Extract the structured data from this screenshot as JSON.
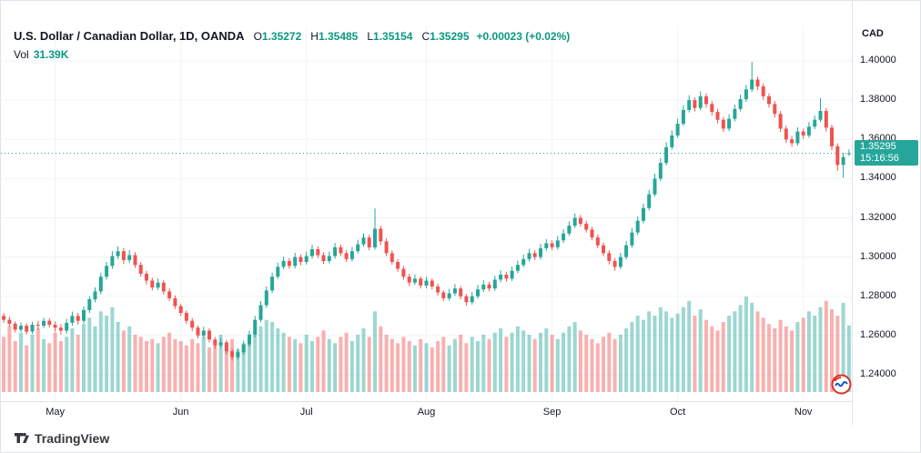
{
  "header": {
    "symbol_title": "U.S. Dollar / Canadian Dollar, 1D, OANDA",
    "open_label": "O",
    "open": "1.35272",
    "high_label": "H",
    "high": "1.35485",
    "low_label": "L",
    "low": "1.35154",
    "close_label": "C",
    "close": "1.35295",
    "change": "+0.00023 (+0.02%)",
    "volume_label": "Vol",
    "volume_value": "31.39K"
  },
  "price_axis": {
    "currency": "CAD",
    "labels": [
      "1.40000",
      "1.38000",
      "1.36000",
      "1.34000",
      "1.32000",
      "1.30000",
      "1.28000",
      "1.26000",
      "1.24000"
    ],
    "last_price": "1.35295",
    "last_time": "15:16:56"
  },
  "footer": {
    "brand": "TradingView"
  },
  "colors": {
    "up": "#26a69a",
    "down": "#ef5350",
    "text_green": "#089981",
    "volume_up": "rgba(38,166,154,0.45)",
    "volume_down": "rgba(239,83,80,0.45)",
    "badge": "#26a69a",
    "grid": "#f0f3fa"
  },
  "chart_data": {
    "type": "candlestick",
    "title": "U.S. Dollar / Canadian Dollar, 1D, OANDA",
    "price_axis_min": 1.24,
    "price_axis_max": 1.4,
    "price_step": 0.02,
    "current_price": 1.35295,
    "ohlc_last": {
      "open": 1.35272,
      "high": 1.35485,
      "low": 1.35154,
      "close": 1.35295,
      "change": 0.00023,
      "change_pct": 0.02
    },
    "volume_last_k": 31.39,
    "month_ticks": [
      {
        "label": "May",
        "index": 9
      },
      {
        "label": "Jun",
        "index": 31
      },
      {
        "label": "Jul",
        "index": 53
      },
      {
        "label": "Aug",
        "index": 74
      },
      {
        "label": "Sep",
        "index": 96
      },
      {
        "label": "Oct",
        "index": 118
      },
      {
        "label": "Nov",
        "index": 140
      }
    ],
    "candles": [
      [
        1.27,
        1.2715,
        1.2665,
        1.268
      ],
      [
        1.268,
        1.2695,
        1.2645,
        1.266
      ],
      [
        1.266,
        1.2672,
        1.2615,
        1.263
      ],
      [
        1.263,
        1.2668,
        1.2618,
        1.265
      ],
      [
        1.265,
        1.2662,
        1.2605,
        1.262
      ],
      [
        1.262,
        1.267,
        1.2608,
        1.2655
      ],
      [
        1.2655,
        1.2675,
        1.2632,
        1.265
      ],
      [
        1.265,
        1.269,
        1.2638,
        1.2675
      ],
      [
        1.2675,
        1.2688,
        1.264,
        1.2655
      ],
      [
        1.2655,
        1.2672,
        1.262,
        1.264
      ],
      [
        1.264,
        1.2658,
        1.2605,
        1.2625
      ],
      [
        1.2625,
        1.2685,
        1.261,
        1.2665
      ],
      [
        1.2665,
        1.2722,
        1.265,
        1.27
      ],
      [
        1.27,
        1.2715,
        1.2655,
        1.2675
      ],
      [
        1.2675,
        1.2748,
        1.266,
        1.273
      ],
      [
        1.273,
        1.28,
        1.2715,
        1.2785
      ],
      [
        1.2785,
        1.2845,
        1.277,
        1.2825
      ],
      [
        1.2825,
        1.292,
        1.281,
        1.29
      ],
      [
        1.29,
        1.2975,
        1.2885,
        1.2955
      ],
      [
        1.2955,
        1.303,
        1.294,
        1.3005
      ],
      [
        1.3005,
        1.3055,
        1.299,
        1.303
      ],
      [
        1.303,
        1.3045,
        1.2965,
        1.2985
      ],
      [
        1.2985,
        1.3035,
        1.297,
        1.301
      ],
      [
        1.301,
        1.3025,
        1.2945,
        1.296
      ],
      [
        1.296,
        1.2975,
        1.29,
        1.2915
      ],
      [
        1.2915,
        1.293,
        1.286,
        1.288
      ],
      [
        1.288,
        1.2895,
        1.283,
        1.2845
      ],
      [
        1.2845,
        1.289,
        1.2832,
        1.287
      ],
      [
        1.287,
        1.2882,
        1.2808,
        1.2825
      ],
      [
        1.2825,
        1.284,
        1.2775,
        1.279
      ],
      [
        1.279,
        1.2805,
        1.2735,
        1.275
      ],
      [
        1.275,
        1.2762,
        1.27,
        1.2715
      ],
      [
        1.2715,
        1.2728,
        1.266,
        1.2675
      ],
      [
        1.2675,
        1.269,
        1.2622,
        1.264
      ],
      [
        1.264,
        1.2652,
        1.2585,
        1.26
      ],
      [
        1.26,
        1.2645,
        1.2588,
        1.2625
      ],
      [
        1.2625,
        1.2638,
        1.2565,
        1.258
      ],
      [
        1.258,
        1.2592,
        1.2532,
        1.255
      ],
      [
        1.255,
        1.2585,
        1.2538,
        1.2565
      ],
      [
        1.2565,
        1.2578,
        1.2505,
        1.252
      ],
      [
        1.252,
        1.2532,
        1.2472,
        1.249
      ],
      [
        1.249,
        1.2535,
        1.2478,
        1.2515
      ],
      [
        1.2515,
        1.2575,
        1.2502,
        1.2555
      ],
      [
        1.2555,
        1.2625,
        1.2542,
        1.2605
      ],
      [
        1.2605,
        1.27,
        1.2592,
        1.268
      ],
      [
        1.268,
        1.2775,
        1.2668,
        1.2755
      ],
      [
        1.2755,
        1.285,
        1.2742,
        1.283
      ],
      [
        1.283,
        1.292,
        1.2818,
        1.29
      ],
      [
        1.29,
        1.2972,
        1.2888,
        1.295
      ],
      [
        1.295,
        1.3002,
        1.2938,
        1.298
      ],
      [
        1.298,
        1.2995,
        1.294,
        1.2955
      ],
      [
        1.2955,
        1.3022,
        1.2942,
        1.3
      ],
      [
        1.3,
        1.3015,
        1.2958,
        1.2975
      ],
      [
        1.2975,
        1.3028,
        1.2962,
        1.3005
      ],
      [
        1.3005,
        1.3062,
        1.2992,
        1.304
      ],
      [
        1.304,
        1.3055,
        1.2995,
        1.301
      ],
      [
        1.301,
        1.3025,
        1.2965,
        1.298
      ],
      [
        1.298,
        1.3028,
        1.2968,
        1.3005
      ],
      [
        1.3005,
        1.3072,
        1.2992,
        1.305
      ],
      [
        1.305,
        1.3065,
        1.3005,
        1.302
      ],
      [
        1.302,
        1.3035,
        1.2975,
        1.299
      ],
      [
        1.299,
        1.3052,
        1.2978,
        1.303
      ],
      [
        1.303,
        1.3088,
        1.3018,
        1.3065
      ],
      [
        1.3065,
        1.3122,
        1.3052,
        1.31
      ],
      [
        1.31,
        1.3115,
        1.3035,
        1.305
      ],
      [
        1.305,
        1.3248,
        1.3038,
        1.3145
      ],
      [
        1.3145,
        1.316,
        1.3062,
        1.308
      ],
      [
        1.308,
        1.3095,
        1.3005,
        1.302
      ],
      [
        1.302,
        1.3035,
        1.296,
        1.2975
      ],
      [
        1.2975,
        1.299,
        1.2925,
        1.294
      ],
      [
        1.294,
        1.2955,
        1.2885,
        1.29
      ],
      [
        1.29,
        1.2915,
        1.2852,
        1.287
      ],
      [
        1.287,
        1.2912,
        1.2858,
        1.289
      ],
      [
        1.289,
        1.2902,
        1.284,
        1.2855
      ],
      [
        1.2855,
        1.29,
        1.2842,
        1.288
      ],
      [
        1.288,
        1.2892,
        1.2835,
        1.285
      ],
      [
        1.285,
        1.2865,
        1.2805,
        1.282
      ],
      [
        1.282,
        1.2832,
        1.2775,
        1.279
      ],
      [
        1.279,
        1.2838,
        1.2778,
        1.2815
      ],
      [
        1.2815,
        1.2862,
        1.2802,
        1.284
      ],
      [
        1.284,
        1.2852,
        1.2785,
        1.28
      ],
      [
        1.28,
        1.2812,
        1.2752,
        1.277
      ],
      [
        1.277,
        1.2822,
        1.2758,
        1.28
      ],
      [
        1.28,
        1.2858,
        1.2788,
        1.2835
      ],
      [
        1.2835,
        1.2882,
        1.2822,
        1.286
      ],
      [
        1.286,
        1.2875,
        1.2825,
        1.284
      ],
      [
        1.284,
        1.2905,
        1.2828,
        1.2885
      ],
      [
        1.2885,
        1.2932,
        1.2872,
        1.291
      ],
      [
        1.291,
        1.2925,
        1.2875,
        1.289
      ],
      [
        1.289,
        1.2952,
        1.2878,
        1.293
      ],
      [
        1.293,
        1.2982,
        1.2918,
        1.296
      ],
      [
        1.296,
        1.3012,
        1.2948,
        1.299
      ],
      [
        1.299,
        1.3042,
        1.2978,
        1.302
      ],
      [
        1.302,
        1.3035,
        1.2985,
        1.3
      ],
      [
        1.3,
        1.3068,
        1.2988,
        1.3045
      ],
      [
        1.3045,
        1.3092,
        1.3032,
        1.307
      ],
      [
        1.307,
        1.3085,
        1.3035,
        1.305
      ],
      [
        1.305,
        1.3108,
        1.3038,
        1.3085
      ],
      [
        1.3085,
        1.3142,
        1.3072,
        1.312
      ],
      [
        1.312,
        1.3182,
        1.3108,
        1.316
      ],
      [
        1.316,
        1.3222,
        1.3148,
        1.32
      ],
      [
        1.32,
        1.3215,
        1.3155,
        1.317
      ],
      [
        1.317,
        1.3185,
        1.3125,
        1.314
      ],
      [
        1.314,
        1.3155,
        1.3085,
        1.31
      ],
      [
        1.31,
        1.3115,
        1.3045,
        1.306
      ],
      [
        1.306,
        1.3075,
        1.3005,
        1.302
      ],
      [
        1.302,
        1.3035,
        1.2962,
        1.298
      ],
      [
        1.298,
        1.2995,
        1.293,
        1.295
      ],
      [
        1.295,
        1.3022,
        1.2938,
        1.3
      ],
      [
        1.3,
        1.3082,
        1.2988,
        1.306
      ],
      [
        1.306,
        1.3148,
        1.3048,
        1.3125
      ],
      [
        1.3125,
        1.3208,
        1.3112,
        1.3185
      ],
      [
        1.3185,
        1.3272,
        1.3172,
        1.325
      ],
      [
        1.325,
        1.3342,
        1.3238,
        1.332
      ],
      [
        1.332,
        1.3425,
        1.3308,
        1.34
      ],
      [
        1.34,
        1.3505,
        1.3388,
        1.348
      ],
      [
        1.348,
        1.3585,
        1.3468,
        1.356
      ],
      [
        1.356,
        1.3645,
        1.3548,
        1.362
      ],
      [
        1.362,
        1.3705,
        1.3608,
        1.368
      ],
      [
        1.368,
        1.3775,
        1.3668,
        1.375
      ],
      [
        1.375,
        1.3825,
        1.3738,
        1.38
      ],
      [
        1.38,
        1.3815,
        1.3742,
        1.376
      ],
      [
        1.376,
        1.3845,
        1.3748,
        1.382
      ],
      [
        1.382,
        1.3835,
        1.3762,
        1.378
      ],
      [
        1.378,
        1.3795,
        1.3722,
        1.374
      ],
      [
        1.374,
        1.3755,
        1.3682,
        1.37
      ],
      [
        1.37,
        1.3715,
        1.3638,
        1.3655
      ],
      [
        1.3655,
        1.3728,
        1.3642,
        1.3705
      ],
      [
        1.3705,
        1.3778,
        1.3692,
        1.3755
      ],
      [
        1.3755,
        1.3828,
        1.3742,
        1.3805
      ],
      [
        1.3805,
        1.3878,
        1.3792,
        1.3855
      ],
      [
        1.3855,
        1.3995,
        1.3842,
        1.3905
      ],
      [
        1.3905,
        1.392,
        1.3852,
        1.387
      ],
      [
        1.387,
        1.3885,
        1.3802,
        1.382
      ],
      [
        1.382,
        1.3835,
        1.3762,
        1.378
      ],
      [
        1.378,
        1.3795,
        1.3712,
        1.373
      ],
      [
        1.373,
        1.3745,
        1.3638,
        1.3655
      ],
      [
        1.3655,
        1.367,
        1.3582,
        1.36
      ],
      [
        1.36,
        1.3618,
        1.3562,
        1.358
      ],
      [
        1.358,
        1.3662,
        1.3568,
        1.364
      ],
      [
        1.364,
        1.3655,
        1.3602,
        1.362
      ],
      [
        1.362,
        1.3688,
        1.3608,
        1.3665
      ],
      [
        1.3665,
        1.3722,
        1.3652,
        1.37
      ],
      [
        1.37,
        1.381,
        1.3688,
        1.3745
      ],
      [
        1.3745,
        1.376,
        1.364,
        1.366
      ],
      [
        1.366,
        1.3675,
        1.3545,
        1.3565
      ],
      [
        1.3565,
        1.358,
        1.344,
        1.347
      ],
      [
        1.347,
        1.353,
        1.3405,
        1.351
      ],
      [
        1.35272,
        1.35485,
        1.35154,
        1.35295
      ]
    ],
    "volumes_k": [
      26,
      31,
      24,
      28,
      22,
      27,
      30,
      25,
      23,
      28,
      24,
      26,
      30,
      27,
      32,
      35,
      31,
      38,
      36,
      40,
      33,
      29,
      31,
      27,
      26,
      24,
      25,
      23,
      26,
      28,
      25,
      24,
      22,
      25,
      23,
      26,
      21,
      24,
      27,
      22,
      25,
      20,
      23,
      26,
      28,
      31,
      34,
      33,
      30,
      28,
      26,
      25,
      23,
      27,
      24,
      26,
      29,
      25,
      23,
      26,
      28,
      24,
      27,
      30,
      26,
      38,
      31,
      27,
      25,
      23,
      26,
      24,
      22,
      25,
      23,
      21,
      24,
      26,
      22,
      25,
      27,
      23,
      26,
      24,
      27,
      25,
      28,
      30,
      26,
      28,
      31,
      29,
      27,
      25,
      28,
      30,
      27,
      25,
      28,
      31,
      33,
      29,
      27,
      25,
      23,
      26,
      28,
      25,
      27,
      30,
      33,
      36,
      34,
      38,
      36,
      40,
      38,
      35,
      37,
      40,
      43,
      36,
      39,
      34,
      31,
      29,
      33,
      36,
      38,
      41,
      45,
      42,
      38,
      35,
      32,
      30,
      34,
      31,
      29,
      33,
      35,
      38,
      36,
      40,
      43,
      39,
      36,
      42,
      31.39
    ]
  }
}
